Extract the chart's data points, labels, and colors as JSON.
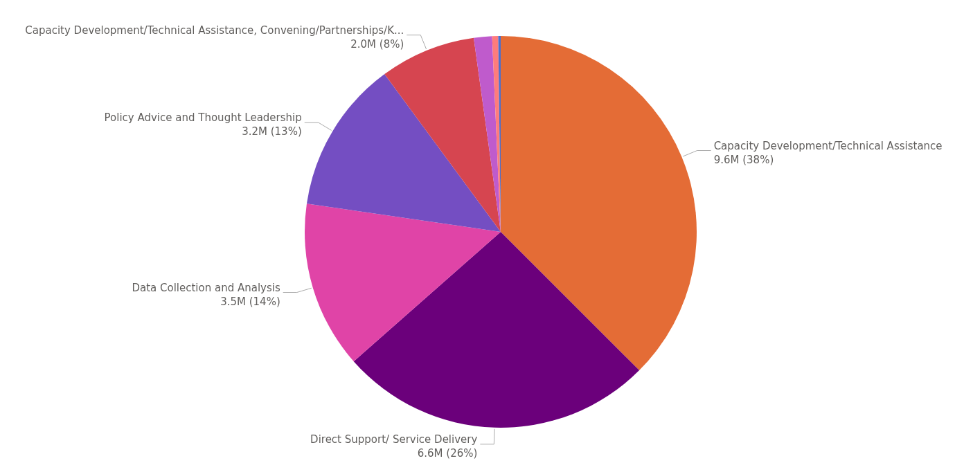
{
  "chart_data": {
    "type": "pie",
    "categories": [
      "Capacity Development/Technical Assistance",
      "Direct Support/ Service Delivery",
      "Data Collection and Analysis",
      "Policy Advice and Thought Leadership",
      "Capacity Development/Technical Assistance, Convening/Partnerships/K...",
      null,
      null,
      null
    ],
    "values": [
      37.5,
      26.0,
      13.8,
      12.6,
      7.9,
      1.5,
      0.5,
      0.2
    ],
    "value_labels": [
      "9.6M (38%)",
      "6.6M (26%)",
      "3.5M (14%)",
      "3.2M (13%)",
      "2.0M (8%)",
      null,
      null,
      null
    ],
    "colors": [
      "#e46c36",
      "#6b007b",
      "#e044a7",
      "#744ec2",
      "#d64550",
      "#bf5bcc",
      "#fe7c7c",
      "#4a6fcf"
    ]
  }
}
